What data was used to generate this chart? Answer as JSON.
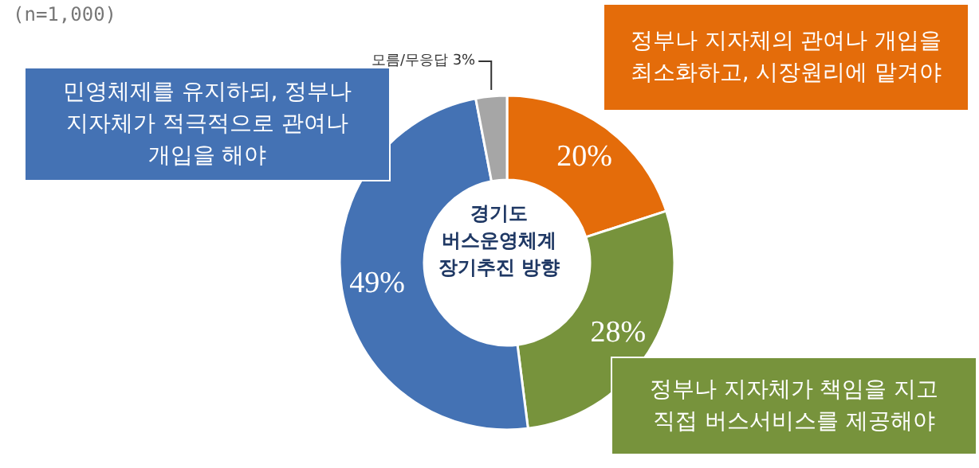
{
  "chart_data": {
    "type": "donut",
    "title": "경기도 버스운영체계 장기추진 방향",
    "categories": [
      "정부나 지자체의 관여나 개입을 최소화하고, 시장원리에 맡겨야",
      "정부나 지자체가 책임을 지고 직접 버스서비스를 제공해야",
      "민영체제를 유지하되, 정부나 지자체가 적극적으로 관여나 개입을 해야",
      "모름/무응답"
    ],
    "values": [
      20,
      28,
      49,
      3
    ],
    "value_labels": [
      "20%",
      "28%",
      "49%",
      "3%"
    ],
    "colors": [
      "#e46c0a",
      "#77933c",
      "#4472b4",
      "#a6a6a6"
    ],
    "annotations": [
      "(n=1,000)"
    ],
    "legend": false
  }
}
